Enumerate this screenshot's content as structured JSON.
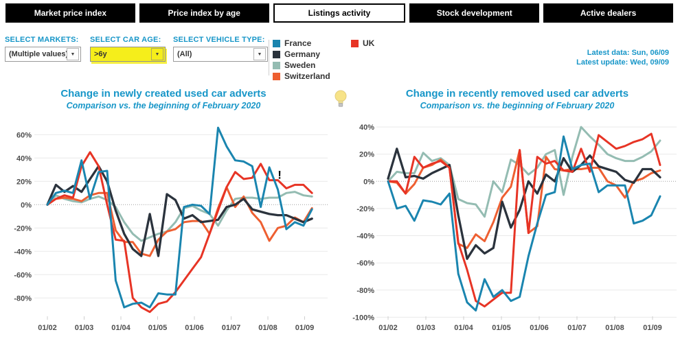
{
  "tabs": [
    {
      "label": "Market price index",
      "active": false
    },
    {
      "label": "Price index by age",
      "active": false
    },
    {
      "label": "Listings activity",
      "active": true
    },
    {
      "label": "Stock development",
      "active": false
    },
    {
      "label": "Active dealers",
      "active": false
    }
  ],
  "filters": {
    "markets": {
      "label": "SELECT MARKETS:",
      "value": "(Multiple values)",
      "highlighted": false
    },
    "car_age": {
      "label": "SELECT CAR AGE:",
      "value": ">6y",
      "highlighted": true
    },
    "vehicle_type": {
      "label": "SELECT VEHICLE TYPE:",
      "value": "(All)",
      "highlighted": false
    }
  },
  "legend": {
    "items": [
      {
        "name": "France",
        "color": "#1a85af"
      },
      {
        "name": "Germany",
        "color": "#2b333d"
      },
      {
        "name": "Sweden",
        "color": "#94bcb2"
      },
      {
        "name": "Switzerland",
        "color": "#ee5f31"
      },
      {
        "name": "UK",
        "color": "#e73425"
      }
    ]
  },
  "status": {
    "latest_data": "Latest data: Sun, 06/09",
    "latest_update": "Latest update: Wed, 09/09"
  },
  "colors": {
    "accent": "#1796c8",
    "axis_text": "#4d4d4d",
    "grid": "#e9e9e9",
    "zero_line": "#9e9e9e",
    "highlight": "#f5ee1b",
    "tab_bg": "#000000",
    "tab_text": "#ffffff"
  },
  "chart_data": [
    {
      "type": "line",
      "title": "Change in newly created used car adverts",
      "subtitle": "Comparison vs. the beginning of February 2020",
      "x_tick_labels": [
        "01/02",
        "01/03",
        "01/04",
        "01/05",
        "01/06",
        "01/07",
        "01/08",
        "01/09"
      ],
      "y_tick_labels": [
        "60%",
        "40%",
        "20%",
        "0%",
        "-20%",
        "-40%",
        "-60%",
        "-80%"
      ],
      "ylim": [
        -97,
        70
      ],
      "x_months_span": 7.2,
      "grid": true,
      "legend_position": "top-of-page",
      "annotation": {
        "text": "!",
        "x_month": 6.32,
        "y_value": 31
      },
      "series": [
        {
          "name": "France",
          "color": "#1a85af",
          "values": [
            0,
            10,
            12,
            10,
            38,
            5,
            28,
            29,
            -65,
            -88,
            -85,
            -84,
            -88,
            -76,
            -77,
            -77,
            -2,
            0,
            -1,
            -8,
            66,
            50,
            38,
            37,
            33,
            -2,
            32,
            13,
            -21,
            -15,
            -18,
            -4
          ]
        },
        {
          "name": "Germany",
          "color": "#2b333d",
          "values": [
            0,
            17,
            11,
            16,
            11,
            22,
            33,
            20,
            -5,
            -25,
            -38,
            -44,
            -8,
            -44,
            9,
            4,
            -12,
            -9,
            -15,
            -14,
            -13,
            -2,
            0,
            5,
            -4,
            -6,
            -8,
            -9,
            -9,
            -12,
            -15,
            -12
          ]
        },
        {
          "name": "Sweden",
          "color": "#94bcb2",
          "values": [
            0,
            8,
            5,
            3,
            2,
            5,
            7,
            4,
            -2,
            -15,
            -25,
            -31,
            -28,
            -25,
            -23,
            -15,
            -3,
            -1,
            -5,
            -8,
            -18,
            -5,
            5,
            6,
            6,
            5,
            6,
            6,
            10,
            11,
            8,
            7
          ]
        },
        {
          "name": "Switzerland",
          "color": "#ee5f31",
          "values": [
            0,
            5,
            6,
            5,
            3,
            8,
            10,
            10,
            -22,
            -32,
            -32,
            -42,
            -44,
            -30,
            -23,
            -21,
            -15,
            -14,
            -14,
            -25,
            -3,
            15,
            -2,
            7,
            -7,
            -15,
            -31,
            -20,
            -18,
            -11,
            -15,
            -3
          ]
        },
        {
          "name": "UK",
          "color": "#e73425",
          "values": [
            0,
            5,
            8,
            6,
            33,
            45,
            33,
            0,
            -30,
            -31,
            -80,
            -88,
            -92,
            -85,
            -83,
            -75,
            -65,
            -55,
            -45,
            -25,
            -5,
            15,
            28,
            22,
            23,
            35,
            21,
            21,
            14,
            17,
            17,
            10
          ]
        }
      ]
    },
    {
      "type": "line",
      "title": "Change in recently removed used car adverts",
      "subtitle": "Comparison vs. the beginning of February 2020",
      "x_tick_labels": [
        "01/02",
        "01/03",
        "01/04",
        "01/05",
        "01/06",
        "01/07",
        "01/08",
        "01/09"
      ],
      "y_tick_labels": [
        "40%",
        "20%",
        "0%",
        "-20%",
        "-40%",
        "-60%",
        "-80%",
        "-100%"
      ],
      "ylim": [
        -103,
        45
      ],
      "x_months_span": 7.2,
      "grid": true,
      "legend_position": "top-of-page",
      "series": [
        {
          "name": "France",
          "color": "#1a85af",
          "values": [
            0,
            -20,
            -18,
            -29,
            -14,
            -15,
            -17,
            -9,
            -68,
            -89,
            -95,
            -72,
            -85,
            -80,
            -88,
            -85,
            -55,
            -31,
            -10,
            -8,
            33,
            9,
            12,
            13,
            -8,
            -3,
            -3,
            -3,
            -31,
            -29,
            -25,
            -11
          ]
        },
        {
          "name": "Germany",
          "color": "#2b333d",
          "values": [
            2,
            24,
            3,
            4,
            2,
            6,
            9,
            12,
            -25,
            -57,
            -47,
            -53,
            -49,
            -15,
            -34,
            -21,
            0,
            -9,
            5,
            0,
            17,
            7,
            12,
            19,
            11,
            9,
            7,
            1,
            -1,
            9,
            9,
            3
          ]
        },
        {
          "name": "Sweden",
          "color": "#94bcb2",
          "values": [
            0,
            7,
            6,
            6,
            21,
            15,
            17,
            12,
            -13,
            -16,
            -17,
            -26,
            0,
            -8,
            16,
            12,
            5,
            10,
            20,
            23,
            -10,
            18,
            40,
            33,
            27,
            20,
            17,
            15,
            15,
            18,
            22,
            30
          ]
        },
        {
          "name": "Switzerland",
          "color": "#ee5f31",
          "values": [
            0,
            -1,
            -9,
            -2,
            10,
            12,
            16,
            10,
            -46,
            -49,
            -39,
            -44,
            -30,
            -12,
            -4,
            23,
            -38,
            -33,
            18,
            9,
            8,
            9,
            9,
            10,
            10,
            0,
            -3,
            -12,
            0,
            2,
            6,
            8
          ]
        },
        {
          "name": "UK",
          "color": "#e73425",
          "values": [
            0,
            0,
            -9,
            18,
            10,
            13,
            15,
            10,
            -45,
            -65,
            -88,
            -92,
            -87,
            -82,
            -82,
            23,
            -38,
            18,
            13,
            15,
            8,
            7,
            24,
            7,
            34,
            29,
            24,
            26,
            29,
            31,
            35,
            12
          ]
        }
      ]
    }
  ]
}
